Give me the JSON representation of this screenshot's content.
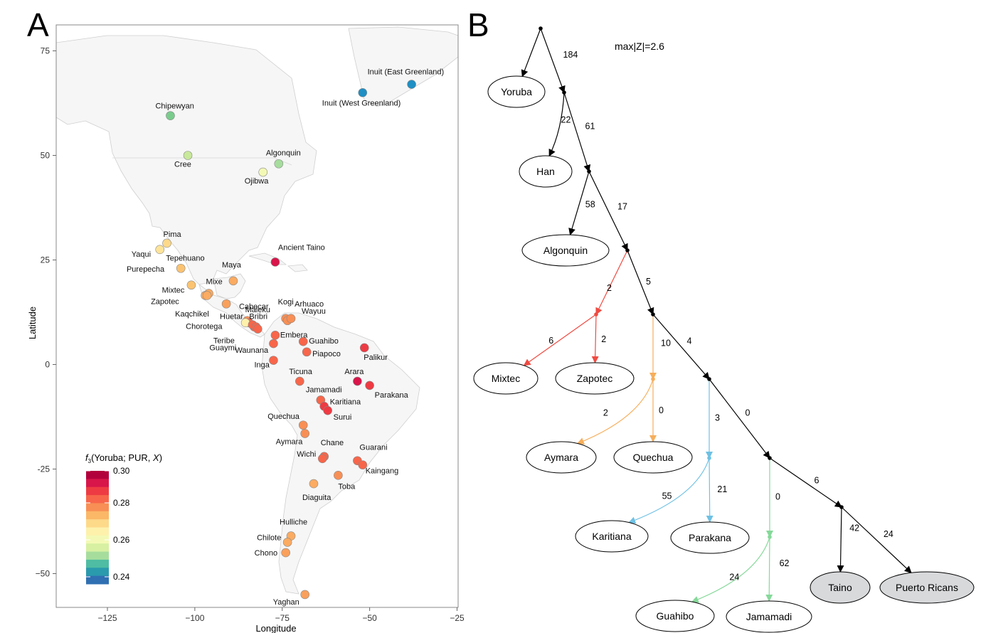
{
  "panel_a": {
    "letter": "A",
    "x_label": "Longitude",
    "y_label": "Latitude",
    "x_ticks": [
      {
        "value": -125,
        "label": "−125"
      },
      {
        "value": -100,
        "label": "−100"
      },
      {
        "value": -75,
        "label": "−75"
      },
      {
        "value": -50,
        "label": "−50"
      },
      {
        "value": -25,
        "label": "−25"
      }
    ],
    "y_ticks": [
      {
        "value": 75,
        "label": "75"
      },
      {
        "value": 50,
        "label": "50"
      },
      {
        "value": 25,
        "label": "25"
      },
      {
        "value": 0,
        "label": "0"
      },
      {
        "value": -25,
        "label": "-25"
      },
      {
        "value": -50,
        "label": "−50"
      }
    ],
    "legend": {
      "title_f": "f",
      "title_sub": "3",
      "title_rest": "(Yoruba; PUR, ",
      "title_x": "X",
      "title_end": ")",
      "colors": [
        "#b2003c",
        "#d8164a",
        "#ee3b43",
        "#f7664a",
        "#f88f55",
        "#fbb867",
        "#fdd98a",
        "#fdf1ac",
        "#f3f9b4",
        "#d7f0a2",
        "#a6dd9d",
        "#4fbda3",
        "#2a9aad",
        "#2f6fb2"
      ],
      "labels": [
        "0.30",
        "0.28",
        "0.26",
        "0.24"
      ]
    },
    "populations": [
      {
        "name": "Inuit (East Greenland)",
        "lon": -38,
        "lat": 67,
        "color": "#1f8fc4"
      },
      {
        "name": "Inuit (West Greenland)",
        "lon": -52,
        "lat": 65,
        "color": "#1f8fc4"
      },
      {
        "name": "Chipewyan",
        "lon": -107,
        "lat": 59.5,
        "color": "#79cc8c"
      },
      {
        "name": "Cree",
        "lon": -102,
        "lat": 50,
        "color": "#c8e89a"
      },
      {
        "name": "Algonquin",
        "lon": -76,
        "lat": 48,
        "color": "#a6dd9d"
      },
      {
        "name": "Ojibwa",
        "lon": -80.5,
        "lat": 46,
        "color": "#f3f9b4"
      },
      {
        "name": "Pima",
        "lon": -108,
        "lat": 29,
        "color": "#fdd98a"
      },
      {
        "name": "Yaqui",
        "lon": -110,
        "lat": 27.5,
        "color": "#fde49a"
      },
      {
        "name": "Tepehuano",
        "lon": -104,
        "lat": 23,
        "color": "#fbc371"
      },
      {
        "name": "Ancient Taino",
        "lon": -77,
        "lat": 24.5,
        "color": "#d8164a"
      },
      {
        "name": "Maya",
        "lon": -89,
        "lat": 20,
        "color": "#fbab62"
      },
      {
        "name": "Purepecha",
        "lon": -101,
        "lat": 19,
        "color": "#fbc371"
      },
      {
        "name": "Mixe",
        "lon": -96,
        "lat": 17,
        "color": "#fbab62"
      },
      {
        "name": "Mixtec",
        "lon": -97,
        "lat": 16.5,
        "color": "#fbab62"
      },
      {
        "name": "Zapotec",
        "lon": -96.5,
        "lat": 16.5,
        "color": "#fbab62"
      },
      {
        "name": "Kaqchikel",
        "lon": -91,
        "lat": 14.5,
        "color": "#f9a05c"
      },
      {
        "name": "Maleku",
        "lon": -85,
        "lat": 10.5,
        "color": "#f88f55"
      },
      {
        "name": "Huetar",
        "lon": -84.5,
        "lat": 10,
        "color": "#f7664a"
      },
      {
        "name": "Chorotega",
        "lon": -85.5,
        "lat": 10,
        "color": "#fdf1ac"
      },
      {
        "name": "Bribri",
        "lon": -83,
        "lat": 9,
        "color": "#f7664a"
      },
      {
        "name": "Cabecar",
        "lon": -83.5,
        "lat": 9.5,
        "color": "#f7664a"
      },
      {
        "name": "Teribe",
        "lon": -82.5,
        "lat": 9,
        "color": "#f7664a"
      },
      {
        "name": "Guaymi",
        "lon": -82,
        "lat": 8.5,
        "color": "#f7664a"
      },
      {
        "name": "Kogi",
        "lon": -74,
        "lat": 11,
        "color": "#f88f55"
      },
      {
        "name": "Arhuaco",
        "lon": -73.5,
        "lat": 10.5,
        "color": "#f88f55"
      },
      {
        "name": "Wayuu",
        "lon": -72.5,
        "lat": 11,
        "color": "#f88f55"
      },
      {
        "name": "Embera",
        "lon": -77,
        "lat": 7,
        "color": "#f7664a"
      },
      {
        "name": "Waunana",
        "lon": -77.5,
        "lat": 5,
        "color": "#f7664a"
      },
      {
        "name": "Guahibo",
        "lon": -69,
        "lat": 5.5,
        "color": "#f7664a"
      },
      {
        "name": "Palikur",
        "lon": -51.5,
        "lat": 4,
        "color": "#ee3b43"
      },
      {
        "name": "Piapoco",
        "lon": -68,
        "lat": 3,
        "color": "#f7664a"
      },
      {
        "name": "Inga",
        "lon": -77.5,
        "lat": 1,
        "color": "#f7664a"
      },
      {
        "name": "Ticuna",
        "lon": -70,
        "lat": -4,
        "color": "#f7664a"
      },
      {
        "name": "Arara",
        "lon": -53.5,
        "lat": -4,
        "color": "#d8164a"
      },
      {
        "name": "Parakana",
        "lon": -50,
        "lat": -5,
        "color": "#ee3b43"
      },
      {
        "name": "Jamamadi",
        "lon": -64,
        "lat": -8.5,
        "color": "#f7664a"
      },
      {
        "name": "Karitiana",
        "lon": -63,
        "lat": -10,
        "color": "#ee3b43"
      },
      {
        "name": "Surui",
        "lon": -62,
        "lat": -11,
        "color": "#ee3b43"
      },
      {
        "name": "Quechua",
        "lon": -69,
        "lat": -14.5,
        "color": "#f88f55"
      },
      {
        "name": "Aymara",
        "lon": -68.5,
        "lat": -16.5,
        "color": "#f88f55"
      },
      {
        "name": "Chane",
        "lon": -63,
        "lat": -22,
        "color": "#f7664a"
      },
      {
        "name": "Wichi",
        "lon": -63.5,
        "lat": -22.5,
        "color": "#f7664a"
      },
      {
        "name": "Guarani",
        "lon": -53.5,
        "lat": -23,
        "color": "#f7664a"
      },
      {
        "name": "Kaingang",
        "lon": -52,
        "lat": -24,
        "color": "#f7664a"
      },
      {
        "name": "Toba",
        "lon": -59,
        "lat": -26.5,
        "color": "#f88f55"
      },
      {
        "name": "Diaguita",
        "lon": -66,
        "lat": -28.5,
        "color": "#fbab62"
      },
      {
        "name": "Hulliche",
        "lon": -72.5,
        "lat": -41,
        "color": "#fbab62"
      },
      {
        "name": "Chilote",
        "lon": -73.5,
        "lat": -42.5,
        "color": "#fbab62"
      },
      {
        "name": "Chono",
        "lon": -74,
        "lat": -45,
        "color": "#f9a05c"
      },
      {
        "name": "Yaghan",
        "lon": -68.5,
        "lat": -55,
        "color": "#f9a05c"
      }
    ]
  },
  "panel_b": {
    "letter": "B",
    "statistic": "max|Z|=2.6",
    "leaves": [
      {
        "id": "yoruba",
        "label": "Yoruba",
        "shaded": false
      },
      {
        "id": "han",
        "label": "Han",
        "shaded": false
      },
      {
        "id": "algonquin",
        "label": "Algonquin",
        "shaded": false
      },
      {
        "id": "mixtec",
        "label": "Mixtec",
        "shaded": false
      },
      {
        "id": "zapotec",
        "label": "Zapotec",
        "shaded": false
      },
      {
        "id": "aymara",
        "label": "Aymara",
        "shaded": false
      },
      {
        "id": "quechua",
        "label": "Quechua",
        "shaded": false
      },
      {
        "id": "karitiana",
        "label": "Karitiana",
        "shaded": false
      },
      {
        "id": "parakana",
        "label": "Parakana",
        "shaded": false
      },
      {
        "id": "guahibo",
        "label": "Guahibo",
        "shaded": false
      },
      {
        "id": "jamamadi",
        "label": "Jamamadi",
        "shaded": false
      },
      {
        "id": "taino",
        "label": "Taino",
        "shaded": true
      },
      {
        "id": "puerto_ricans",
        "label": "Puerto Ricans",
        "shaded": true
      }
    ],
    "edges": [
      {
        "from": "root",
        "to": "yoruba",
        "label": "",
        "color": "#000000"
      },
      {
        "from": "root",
        "to": "n1",
        "label": "184",
        "color": "#000000"
      },
      {
        "from": "n1",
        "to": "han",
        "label": "22",
        "color": "#000000"
      },
      {
        "from": "n1",
        "to": "n2",
        "label": "61",
        "color": "#000000"
      },
      {
        "from": "n2",
        "to": "algonquin",
        "label": "58",
        "color": "#000000"
      },
      {
        "from": "n2",
        "to": "n3",
        "label": "17",
        "color": "#000000"
      },
      {
        "from": "n3",
        "to": "m1",
        "label": "2",
        "color": "#ef4b42"
      },
      {
        "from": "m1",
        "to": "mixtec",
        "label": "6",
        "color": "#ef4b42"
      },
      {
        "from": "m1",
        "to": "zapotec",
        "label": "2",
        "color": "#ef4b42"
      },
      {
        "from": "n3",
        "to": "n4",
        "label": "5",
        "color": "#000000"
      },
      {
        "from": "n4",
        "to": "a1",
        "label": "10",
        "color": "#f6ae5b"
      },
      {
        "from": "a1",
        "to": "aymara",
        "label": "2",
        "color": "#f6ae5b"
      },
      {
        "from": "a1",
        "to": "quechua",
        "label": "0",
        "color": "#f6ae5b"
      },
      {
        "from": "n4",
        "to": "n5",
        "label": "4",
        "color": "#000000"
      },
      {
        "from": "n5",
        "to": "k1",
        "label": "3",
        "color": "#6ec1e4"
      },
      {
        "from": "k1",
        "to": "karitiana",
        "label": "55",
        "color": "#6ec1e4"
      },
      {
        "from": "k1",
        "to": "parakana",
        "label": "21",
        "color": "#6ec1e4"
      },
      {
        "from": "n5",
        "to": "n6",
        "label": "0",
        "color": "#000000"
      },
      {
        "from": "n6",
        "to": "g1",
        "label": "0",
        "color": "#86d99a"
      },
      {
        "from": "g1",
        "to": "guahibo",
        "label": "24",
        "color": "#86d99a"
      },
      {
        "from": "g1",
        "to": "jamamadi",
        "label": "62",
        "color": "#86d99a"
      },
      {
        "from": "n6",
        "to": "n7",
        "label": "6",
        "color": "#000000"
      },
      {
        "from": "n7",
        "to": "taino",
        "label": "42",
        "color": "#000000"
      },
      {
        "from": "n7",
        "to": "puerto_ricans",
        "label": "24",
        "color": "#000000"
      }
    ]
  }
}
